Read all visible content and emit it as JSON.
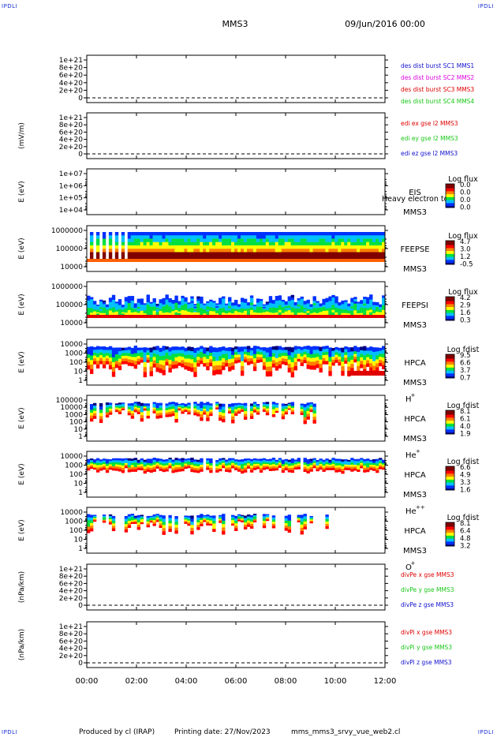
{
  "corner_labels": {
    "top_left": "IPDLI",
    "top_right": "IPDLI",
    "bottom_left": "IPDLI",
    "bottom_right": "IPDLI"
  },
  "header": {
    "mission": "MMS3",
    "date": "09/Jun/2016 00:00"
  },
  "footer": {
    "produced_by": "Produced by cl (IRAP)",
    "printing_date": "Printing date: 27/Nov/2023",
    "product": "mms_mms3_srvy_vue_web2.cl"
  },
  "time_axis": {
    "labels": [
      "00:00",
      "02:00",
      "04:00",
      "06:00",
      "08:00",
      "10:00",
      "12:00"
    ],
    "range_hours": [
      0,
      12
    ]
  },
  "colors": {
    "red": "#e00000",
    "magenta": "#e000e0",
    "green": "#18c818",
    "blue": "#1010d0",
    "cbar": [
      "#000080",
      "#0030ff",
      "#00c0ff",
      "#00e040",
      "#ffff00",
      "#ff8000",
      "#ff0000",
      "#800000"
    ]
  },
  "chart_data": [
    {
      "type": "line",
      "name": "des-dist",
      "ylabel": "",
      "ticks": [
        "1e+21",
        "8e+20",
        "6e+20",
        "4e+20",
        "2e+20",
        "0"
      ],
      "ylim": [
        0,
        1.1e+21
      ],
      "zero_line": true,
      "legend": [
        {
          "text": "des dist burst SC1 MMS1",
          "color": "#1010d0"
        },
        {
          "text": "des dist burst SC2 MMS2",
          "color": "#e000e0"
        },
        {
          "text": "des dist burst SC3 MMS3",
          "color": "#e00000"
        },
        {
          "text": "des dist burst SC4 MMS4",
          "color": "#18c818"
        }
      ]
    },
    {
      "type": "line",
      "name": "edi",
      "ylabel": "(mV/m)",
      "ticks": [
        "1e+21",
        "8e+20",
        "6e+20",
        "4e+20",
        "2e+20",
        "0"
      ],
      "ylim": [
        0,
        1.1e+21
      ],
      "zero_line": true,
      "legend": [
        {
          "text": "edi ex gse l2 MMS3",
          "color": "#e00000"
        },
        {
          "text": "edi ey gse l2 MMS3",
          "color": "#18c818"
        },
        {
          "text": "edi ez gse l2 MMS3",
          "color": "#1010d0"
        }
      ]
    },
    {
      "type": "heatmap",
      "name": "eis",
      "ylabel": "E (eV)",
      "ticks": [
        "1e+07",
        "1e+06",
        "1e+05",
        "1e+04"
      ],
      "log": true,
      "instrument": [
        "EIS",
        "MMS3"
      ],
      "overlay_text": "Heavy electron to",
      "cbar_title": "Log flux",
      "cbar_ticks": [
        "0.0",
        "0.0",
        "0.0",
        "0.0"
      ]
    },
    {
      "type": "heatmap",
      "name": "feepse",
      "ylabel": "E (eV)",
      "ticks": [
        "1000000",
        "100000",
        "10000"
      ],
      "log": true,
      "instrument": [
        "FEEPSE",
        "MMS3"
      ],
      "cbar_title": "Log flux",
      "cbar_ticks": [
        "4.7",
        "3.0",
        "1.2",
        "-0.5"
      ]
    },
    {
      "type": "heatmap",
      "name": "feepsi",
      "ylabel": "E (eV)",
      "ticks": [
        "1000000",
        "100000",
        "10000"
      ],
      "log": true,
      "instrument": [
        "FEEPSI",
        "MMS3"
      ],
      "cbar_title": "Log flux",
      "cbar_ticks": [
        "4.2",
        "2.9",
        "1.6",
        "0.3"
      ]
    },
    {
      "type": "heatmap",
      "name": "hpca-h",
      "ylabel": "E (eV)",
      "ticks": [
        "10000",
        "1000",
        "100",
        "10",
        "1"
      ],
      "log": true,
      "instrument": [
        "HPCA",
        "MMS3"
      ],
      "species": "H",
      "charge": "+",
      "cbar_title": "Log fdist",
      "cbar_ticks": [
        "9.5",
        "6.6",
        "3.7",
        "0.7"
      ]
    },
    {
      "type": "heatmap",
      "name": "hpca-he",
      "ylabel": "E (eV)",
      "ticks": [
        "100000",
        "10000",
        "1000",
        "100",
        "10",
        "1"
      ],
      "log": true,
      "instrument": [
        "HPCA",
        "MMS3"
      ],
      "species": "He",
      "charge": "+",
      "cbar_title": "Log fdist",
      "cbar_ticks": [
        "8.1",
        "6.1",
        "4.0",
        "1.9"
      ]
    },
    {
      "type": "heatmap",
      "name": "hpca-hepp",
      "ylabel": "E (eV)",
      "ticks": [
        "10000",
        "1000",
        "100",
        "10",
        "1"
      ],
      "log": true,
      "instrument": [
        "HPCA",
        "MMS3"
      ],
      "species": "He",
      "charge": "++",
      "cbar_title": "Log fdist",
      "cbar_ticks": [
        "6.6",
        "4.9",
        "3.3",
        "1.6"
      ]
    },
    {
      "type": "heatmap",
      "name": "hpca-o",
      "ylabel": "E (eV)",
      "ticks": [
        "10000",
        "1000",
        "100",
        "10",
        "1"
      ],
      "log": true,
      "instrument": [
        "HPCA",
        "MMS3"
      ],
      "species": "O",
      "charge": "+",
      "cbar_title": "Log fdist",
      "cbar_ticks": [
        "8.1",
        "6.4",
        "4.8",
        "3.2"
      ]
    },
    {
      "type": "line",
      "name": "divpe",
      "ylabel": "(nPa/km)",
      "ticks": [
        "1e+21",
        "8e+20",
        "6e+20",
        "4e+20",
        "2e+20",
        "0"
      ],
      "ylim": [
        0,
        1.1e+21
      ],
      "zero_line": true,
      "legend": [
        {
          "text": "divPe x gse MMS3",
          "color": "#e00000"
        },
        {
          "text": "divPe y gse MMS3",
          "color": "#18c818"
        },
        {
          "text": "divPe z gse MMS3",
          "color": "#1010d0"
        }
      ]
    },
    {
      "type": "line",
      "name": "divpi",
      "ylabel": "(nPa/km)",
      "ticks": [
        "1e+21",
        "8e+20",
        "6e+20",
        "4e+20",
        "2e+20",
        "0"
      ],
      "ylim": [
        0,
        1.1e+21
      ],
      "zero_line": true,
      "legend": [
        {
          "text": "divPi x gse MMS3",
          "color": "#e00000"
        },
        {
          "text": "divPi y gse MMS3",
          "color": "#18c818"
        },
        {
          "text": "divPi z gse MMS3",
          "color": "#1010d0"
        }
      ]
    }
  ]
}
